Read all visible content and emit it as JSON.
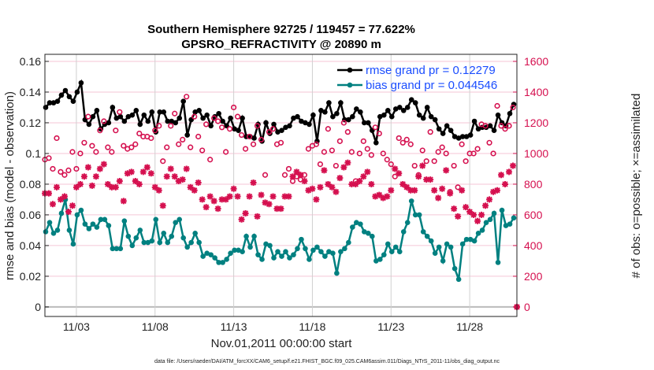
{
  "colors": {
    "rmse": "#000000",
    "bias": "#008080",
    "obs": "#d5104f",
    "legend_text": "#1a4dff",
    "grid": "#f4c6d6",
    "vgrid": "#d0d0d0"
  },
  "footer": "data file: /Users/raeder/DAI/ATM_forcXX/CAM6_setup/f.e21.FHIST_BGC.f09_025.CAM6assim.011/Diags_NTrS_2011-11/obs_diag_output.nc",
  "chart_data": {
    "type": "line",
    "title": "Southern Hemisphere 92725 / 119457 = 77.622%",
    "subtitle": "GPSRO_REFRACTIVITY @ 20890 m",
    "xlabel": "Nov.01,2011 00:00:00 start",
    "ylabel": "rmse and bias (model - observation)",
    "y2label": "# of obs: o=possible; ×=assimilated",
    "xlim": [
      0,
      30
    ],
    "ylim": [
      -0.0062,
      0.1646
    ],
    "y2lim": [
      -62,
      1646
    ],
    "x_step_days": 0.25,
    "xticks": [
      {
        "x": 2,
        "label": "11/03"
      },
      {
        "x": 7,
        "label": "11/08"
      },
      {
        "x": 12,
        "label": "11/13"
      },
      {
        "x": 17,
        "label": "11/18"
      },
      {
        "x": 22,
        "label": "11/23"
      },
      {
        "x": 27,
        "label": "11/28"
      }
    ],
    "yticks": [
      {
        "v": 0,
        "label": "0"
      },
      {
        "v": 0.02,
        "label": "0.02"
      },
      {
        "v": 0.04,
        "label": "0.04"
      },
      {
        "v": 0.06,
        "label": "0.06"
      },
      {
        "v": 0.08,
        "label": "0.08"
      },
      {
        "v": 0.1,
        "label": "0.1"
      },
      {
        "v": 0.12,
        "label": "0.12"
      },
      {
        "v": 0.14,
        "label": "0.14"
      },
      {
        "v": 0.16,
        "label": "0.16"
      }
    ],
    "y2ticks": [
      {
        "v": 0,
        "label": "0"
      },
      {
        "v": 200,
        "label": "200"
      },
      {
        "v": 400,
        "label": "400"
      },
      {
        "v": 600,
        "label": "600"
      },
      {
        "v": 800,
        "label": "800"
      },
      {
        "v": 1000,
        "label": "1000"
      },
      {
        "v": 1200,
        "label": "1200"
      },
      {
        "v": 1400,
        "label": "1400"
      },
      {
        "v": 1600,
        "label": "1600"
      }
    ],
    "legend_position": "top-right",
    "series": [
      {
        "name": "rmse grand pr = 0.12279",
        "axis": "left",
        "style": "line-dot",
        "values": [
          0.13,
          0.133,
          0.133,
          0.134,
          0.138,
          0.141,
          0.137,
          0.134,
          0.14,
          0.146,
          0.122,
          0.119,
          0.124,
          0.128,
          0.116,
          0.119,
          0.12,
          0.13,
          0.123,
          0.124,
          0.121,
          0.124,
          0.125,
          0.128,
          0.119,
          0.125,
          0.121,
          0.127,
          0.114,
          0.127,
          0.127,
          0.121,
          0.121,
          0.12,
          0.123,
          0.134,
          0.112,
          0.122,
          0.127,
          0.128,
          0.123,
          0.125,
          0.118,
          0.124,
          0.126,
          0.121,
          0.118,
          0.123,
          0.116,
          0.115,
          0.123,
          0.111,
          0.111,
          0.11,
          0.119,
          0.108,
          0.12,
          0.113,
          0.119,
          0.114,
          0.115,
          0.117,
          0.118,
          0.123,
          0.124,
          0.121,
          0.12,
          0.119,
          0.125,
          0.108,
          0.128,
          0.127,
          0.133,
          0.124,
          0.126,
          0.133,
          0.122,
          0.122,
          0.124,
          0.129,
          0.127,
          0.12,
          0.12,
          0.115,
          0.107,
          0.124,
          0.125,
          0.128,
          0.124,
          0.129,
          0.13,
          0.128,
          0.13,
          0.135,
          0.133,
          0.125,
          0.123,
          0.13,
          0.124,
          0.122,
          0.116,
          0.113,
          0.118,
          0.115,
          0.111,
          0.11,
          0.111,
          0.111,
          0.112,
          0.121,
          0.116,
          0.117,
          0.117,
          0.118,
          0.115,
          0.125,
          0.12,
          0.118,
          0.126,
          0.132
        ]
      },
      {
        "name": "bias grand pr = 0.044546",
        "axis": "left",
        "style": "line-dot",
        "values": [
          0.049,
          0.055,
          0.048,
          0.05,
          0.061,
          0.07,
          0.05,
          0.041,
          0.06,
          0.063,
          0.054,
          0.051,
          0.054,
          0.052,
          0.057,
          0.057,
          0.053,
          0.038,
          0.038,
          0.038,
          0.056,
          0.046,
          0.04,
          0.045,
          0.05,
          0.042,
          0.042,
          0.043,
          0.057,
          0.042,
          0.048,
          0.042,
          0.046,
          0.055,
          0.057,
          0.045,
          0.039,
          0.042,
          0.048,
          0.042,
          0.033,
          0.035,
          0.034,
          0.032,
          0.029,
          0.029,
          0.031,
          0.035,
          0.037,
          0.037,
          0.036,
          0.046,
          0.039,
          0.046,
          0.034,
          0.031,
          0.041,
          0.04,
          0.032,
          0.036,
          0.033,
          0.036,
          0.032,
          0.034,
          0.038,
          0.044,
          0.038,
          0.031,
          0.037,
          0.039,
          0.036,
          0.033,
          0.036,
          0.035,
          0.022,
          0.036,
          0.038,
          0.042,
          0.052,
          0.055,
          0.054,
          0.049,
          0.048,
          0.046,
          0.03,
          0.031,
          0.034,
          0.041,
          0.036,
          0.039,
          0.036,
          0.049,
          0.055,
          0.069,
          0.06,
          0.06,
          0.049,
          0.046,
          0.043,
          0.035,
          0.039,
          0.03,
          0.041,
          0.039,
          0.025,
          0.018,
          0.041,
          0.044,
          0.044,
          0.043,
          0.048,
          0.05,
          0.055,
          0.057,
          0.061,
          0.029,
          0.063,
          0.053,
          0.054,
          0.058
        ]
      },
      {
        "name": "obs possible",
        "axis": "right",
        "style": "circle",
        "values": [
          960,
          970,
          900,
          1100,
          880,
          860,
          890,
          1010,
          900,
          1000,
          1070,
          1240,
          1050,
          1010,
          1150,
          1210,
          1040,
          1010,
          1150,
          1270,
          1050,
          1030,
          1040,
          1060,
          1130,
          1110,
          1110,
          1100,
          1150,
          1180,
          950,
          1040,
          1180,
          1260,
          1060,
          1090,
          1370,
          1040,
          1240,
          1110,
          1020,
          1190,
          960,
          1230,
          1210,
          1170,
          1010,
          1160,
          1300,
          1240,
          1120,
          1030,
          1110,
          1060,
          1180,
          1090,
          860,
          1140,
          1160,
          1060,
          1070,
          860,
          900,
          820,
          850,
          830,
          860,
          1030,
          1050,
          1060,
          930,
          1010,
          1160,
          1020,
          920,
          1080,
          1200,
          1140,
          1010,
          820,
          1000,
          1080,
          1030,
          990,
          1170,
          1130,
          1000,
          960,
          930,
          850,
          1100,
          1070,
          1090,
          1060,
          920,
          860,
          1020,
          950,
          1140,
          950,
          1010,
          1040,
          1000,
          750,
          920,
          780,
          1060,
          950,
          1000,
          1000,
          1030,
          1190,
          1180,
          1070,
          1000,
          1310,
          1180,
          1160,
          1180,
          1300,
          0
        ]
      },
      {
        "name": "obs assimilated",
        "axis": "right",
        "style": "star",
        "values": [
          740,
          740,
          670,
          780,
          700,
          720,
          620,
          660,
          780,
          800,
          850,
          910,
          790,
          850,
          900,
          930,
          800,
          780,
          780,
          820,
          690,
          870,
          880,
          820,
          800,
          880,
          910,
          870,
          780,
          760,
          660,
          850,
          900,
          850,
          820,
          830,
          900,
          780,
          760,
          810,
          700,
          650,
          720,
          690,
          640,
          700,
          700,
          720,
          770,
          720,
          570,
          610,
          720,
          810,
          590,
          730,
          680,
          670,
          720,
          640,
          640,
          720,
          720,
          850,
          880,
          860,
          820,
          760,
          770,
          700,
          780,
          890,
          800,
          780,
          750,
          840,
          910,
          940,
          800,
          800,
          820,
          850,
          880,
          800,
          720,
          730,
          710,
          720,
          760,
          900,
          870,
          800,
          780,
          760,
          760,
          850,
          920,
          830,
          830,
          760,
          710,
          770,
          890,
          740,
          640,
          590,
          760,
          650,
          620,
          600,
          560,
          600,
          660,
          700,
          750,
          760,
          860,
          800,
          880,
          920,
          0
        ]
      }
    ]
  }
}
